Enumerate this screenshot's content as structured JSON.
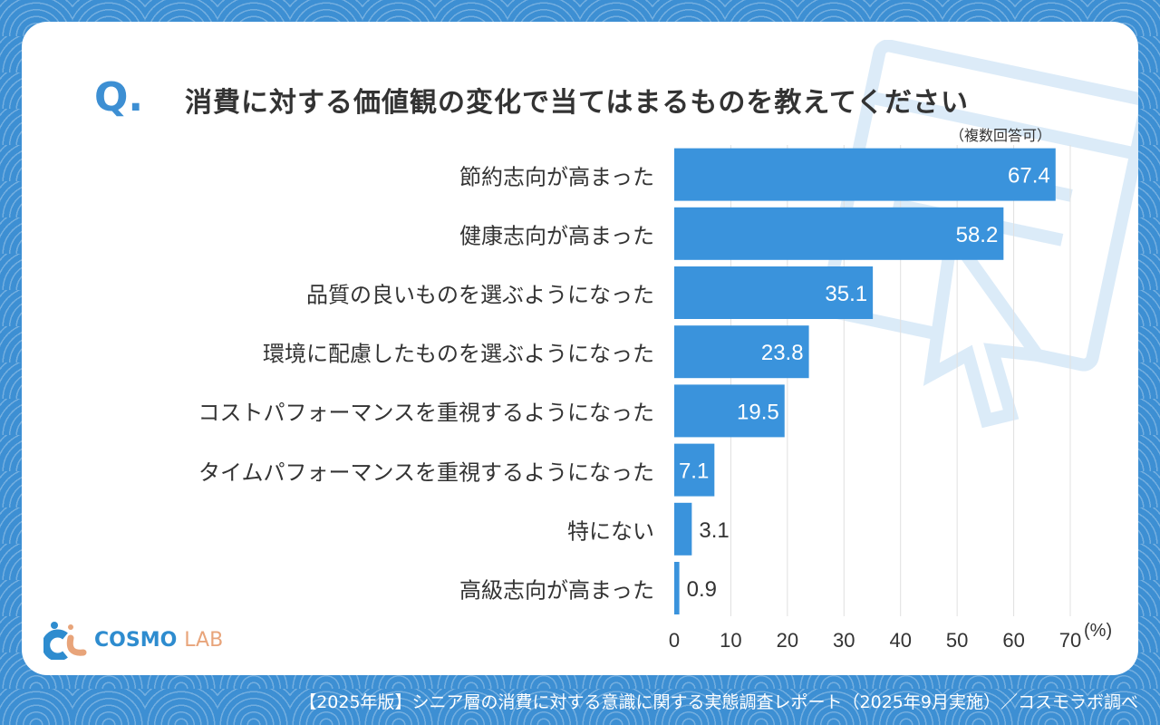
{
  "question_mark": "Q.",
  "title": "消費に対する価値観の変化で当てはまるものを教えてください",
  "note": "（複数回答可）",
  "logo": {
    "text1": "COSMO",
    "text2": "LAB"
  },
  "footer": "【2025年版】シニア層の消費に対する意識に関する実態調査レポート（2025年9月実施）／コスモラボ調べ",
  "colors": {
    "bar": "#3a93dc",
    "background": "#3d8fd3"
  },
  "chart_data": {
    "type": "bar",
    "orientation": "horizontal",
    "categories": [
      "節約志向が高まった",
      "健康志向が高まった",
      "品質の良いものを選ぶようになった",
      "環境に配慮したものを選ぶようになった",
      "コストパフォーマンスを重視するようになった",
      "タイムパフォーマンスを重視するようになった",
      "特にない",
      "高級志向が高まった"
    ],
    "values": [
      67.4,
      58.2,
      35.1,
      23.8,
      19.5,
      7.1,
      3.1,
      0.9
    ],
    "value_labels": [
      "67.4",
      "58.2",
      "35.1",
      "23.8",
      "19.5",
      "7.1",
      "3.1",
      "0.9"
    ],
    "xlim": [
      0,
      70
    ],
    "xticks": [
      "0",
      "10",
      "20",
      "30",
      "40",
      "50",
      "60",
      "70"
    ],
    "xunit": "(%)",
    "grid": true
  }
}
